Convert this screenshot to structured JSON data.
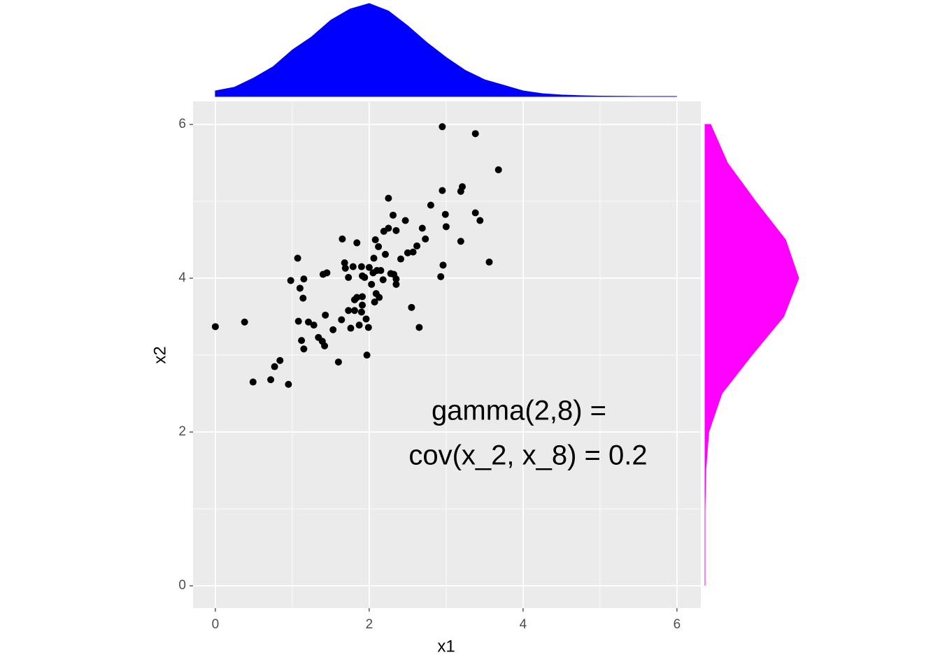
{
  "chart_data": {
    "type": "scatter",
    "x_label": "x1",
    "y_label": "x2",
    "color": "#000000",
    "grid": true,
    "xlim": [
      -0.29,
      6.31
    ],
    "ylim": [
      -0.29,
      6.3
    ],
    "xticks": [
      0,
      2,
      4,
      6
    ],
    "yticks": [
      0,
      2,
      4,
      6
    ],
    "xminor": [
      1,
      3,
      5
    ],
    "yminor": [
      1,
      3,
      5
    ],
    "annotation": [
      "gamma(2,8) =",
      "cov(x_2, x_8) = 0.2"
    ],
    "x": [
      0,
      0.38,
      0.49,
      0.72,
      0.77,
      0.84,
      0.95,
      0.98,
      1.07,
      1.1,
      1.15,
      1.14,
      1.08,
      1.12,
      1.15,
      1.21,
      1.28,
      1.34,
      1.39,
      1.42,
      1.43,
      1.4,
      1.45,
      1.53,
      1.6,
      1.64,
      1.65,
      1.68,
      1.69,
      1.73,
      1.73,
      1.76,
      1.79,
      1.81,
      1.81,
      1.84,
      1.84,
      1.87,
      1.9,
      1.91,
      1.91,
      1.9,
      1.91,
      1.94,
      1.96,
      1.99,
      1.97,
      2.0,
      2.03,
      2.05,
      2.06,
      2.08,
      2.07,
      2.09,
      2.1,
      2.12,
      2.13,
      2.15,
      2.18,
      2.19,
      2.21,
      2.25,
      2.25,
      2.28,
      2.31,
      2.32,
      2.35,
      2.35,
      2.35,
      2.41,
      2.47,
      2.5,
      2.55,
      2.57,
      2.62,
      2.65,
      2.69,
      2.73,
      2.8,
      2.93,
      2.95,
      2.95,
      2.96,
      2.99,
      3.0,
      3.19,
      3.19,
      3.21,
      3.38,
      3.38,
      3.44,
      3.56,
      3.68
    ],
    "y": [
      3.37,
      3.43,
      2.65,
      2.68,
      2.85,
      2.93,
      2.62,
      3.97,
      4.26,
      3.87,
      3.99,
      3.74,
      3.44,
      3.19,
      3.08,
      3.43,
      3.39,
      3.23,
      3.18,
      3.12,
      3.52,
      4.05,
      4.07,
      3.33,
      2.91,
      3.46,
      4.51,
      4.2,
      4.13,
      4.01,
      3.58,
      3.35,
      4.15,
      3.72,
      3.58,
      4.46,
      3.75,
      3.39,
      4.15,
      4.03,
      3.76,
      3.56,
      3.65,
      4.01,
      3.47,
      3.36,
      3.0,
      4.14,
      3.92,
      4.07,
      4.26,
      4.5,
      3.69,
      3.8,
      4.1,
      4.41,
      3.75,
      4.1,
      3.98,
      4.61,
      4.31,
      5.04,
      4.65,
      4.06,
      4.82,
      4.05,
      4.62,
      3.99,
      3.92,
      4.25,
      4.75,
      4.33,
      3.62,
      4.34,
      4.42,
      3.36,
      4.65,
      4.51,
      4.95,
      4.02,
      5.14,
      5.97,
      4.17,
      4.83,
      4.67,
      5.13,
      4.48,
      5.19,
      5.88,
      4.85,
      4.75,
      4.21,
      5.41
    ],
    "marginal_x": {
      "type": "density",
      "color": "#0000ff",
      "x": [
        0,
        0.25,
        0.5,
        0.75,
        1,
        1.25,
        1.5,
        1.75,
        2,
        2.25,
        2.5,
        2.75,
        3,
        3.25,
        3.5,
        3.75,
        4,
        4.25,
        4.5,
        4.75,
        5,
        5.25,
        5.5,
        5.75,
        6
      ],
      "values": [
        0.03,
        0.05,
        0.1,
        0.16,
        0.25,
        0.32,
        0.41,
        0.47,
        0.5,
        0.46,
        0.38,
        0.29,
        0.21,
        0.14,
        0.09,
        0.06,
        0.03,
        0.015,
        0.008,
        0.004,
        0.002,
        0.001,
        0,
        0,
        0
      ]
    },
    "marginal_y": {
      "type": "density",
      "color": "#ff00ff",
      "y": [
        0,
        0.5,
        1,
        1.5,
        2,
        2.5,
        3,
        3.5,
        4,
        4.5,
        5,
        5.5,
        6
      ],
      "values": [
        0,
        0,
        0,
        0.004,
        0.02,
        0.09,
        0.25,
        0.42,
        0.5,
        0.43,
        0.27,
        0.12,
        0.03
      ]
    }
  }
}
